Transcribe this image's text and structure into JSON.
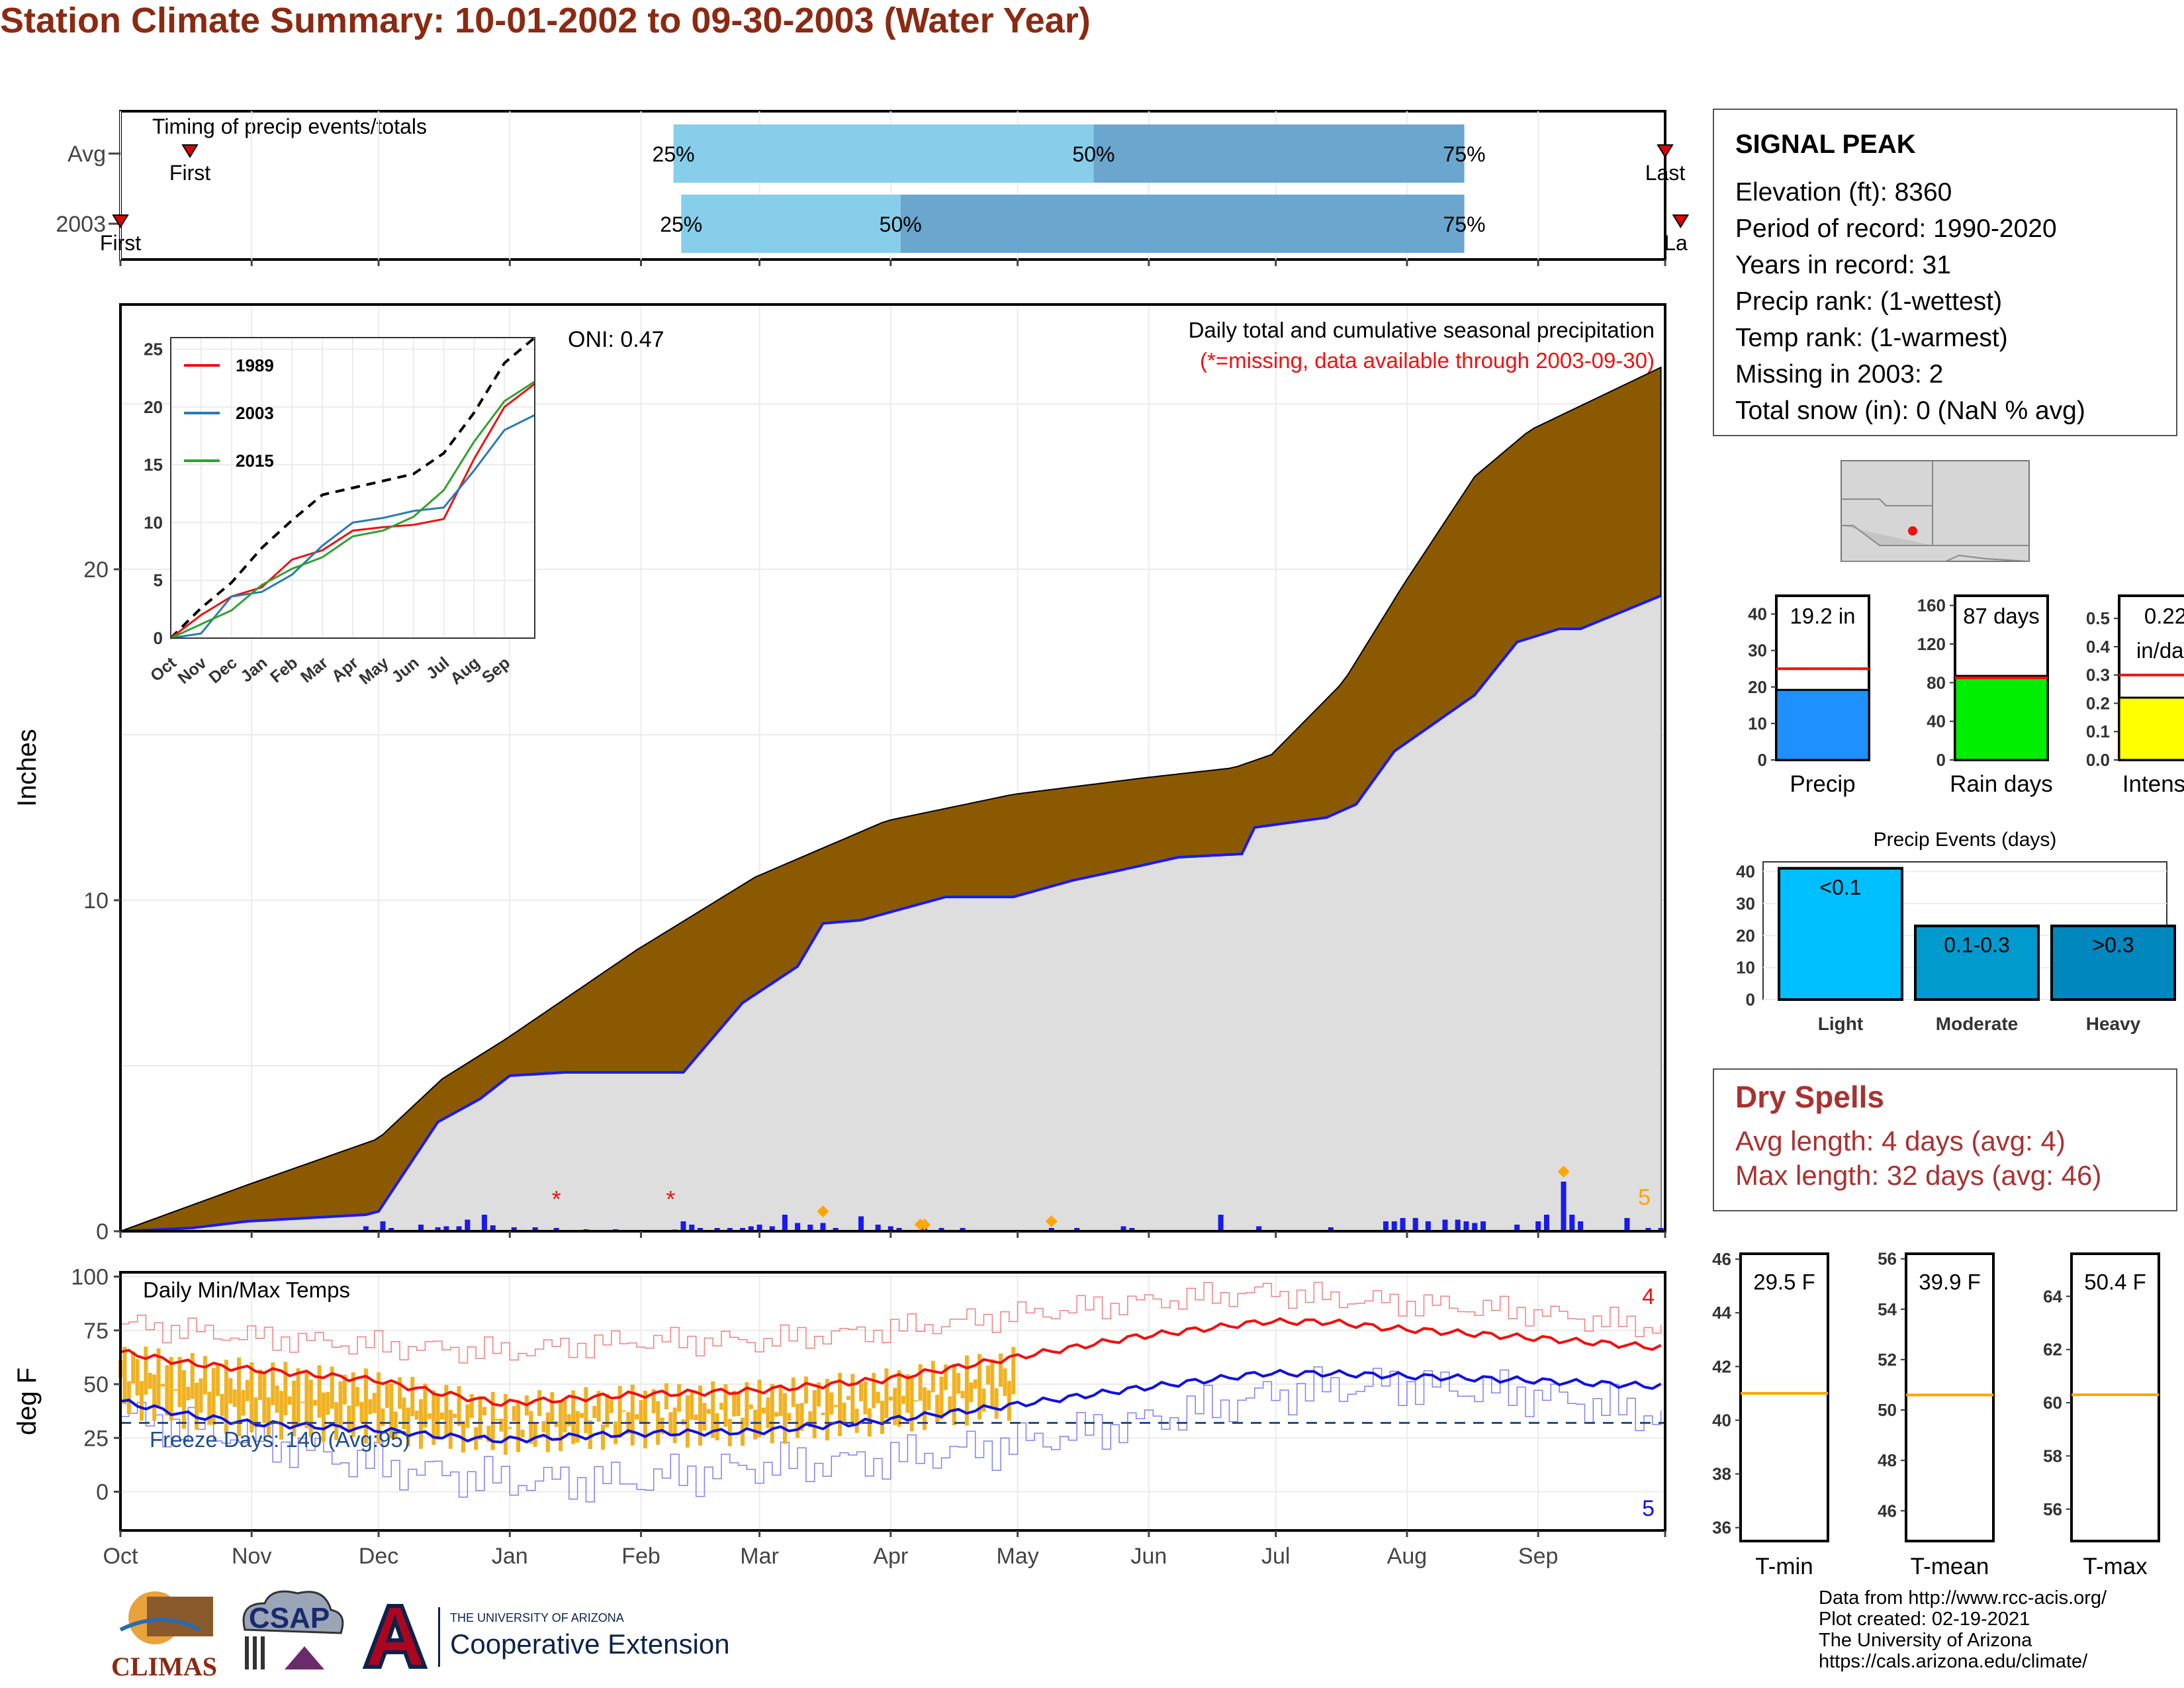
{
  "page": {
    "title": "Station Climate Summary: 10-01-2002 to 09-30-2003 (Water Year)"
  },
  "colors": {
    "title": "#8b2a12",
    "avg_fill": "#8b5a00",
    "year_fill": "#dedede",
    "year_line": "#1a1aee",
    "daily_bars": "#1a1aee",
    "missing": "#ee1111",
    "snow_marker": "#ffa500",
    "timing_light": "#87ceeb",
    "timing_dark": "#6aa6cd",
    "temp_bars": "#f0b222",
    "max_line": "#ee1111",
    "min_line": "#1111dd",
    "precip_bar": "#1e90ff",
    "raindays_bar": "#00ee00",
    "intensity_bar": "#ffff00",
    "events_light": "#00bfff",
    "events_moderate": "#009acd",
    "events_heavy": "#0087bd",
    "avg_ref_line": "#ee1111",
    "temp_avg_line": "#ffa500"
  },
  "timing_panel": {
    "label": "Timing of precip events/totals",
    "rows": [
      {
        "name": "Avg",
        "first_label": "First",
        "last_label": "Last",
        "first_frac": 0.045,
        "last_frac": 1.0,
        "p25": 0.358,
        "p50": 0.63,
        "p75": 0.87,
        "p25_label": "25%",
        "p50_label": "50%",
        "p75_label": "75%"
      },
      {
        "name": "2003",
        "first_label": "First",
        "last_label": "La",
        "first_frac": 0.0,
        "last_frac": 1.01,
        "p25": 0.363,
        "p50": 0.505,
        "p75": 0.87,
        "p25_label": "25%",
        "p50_label": "50%",
        "p75_label": "75%"
      }
    ]
  },
  "station": {
    "name": "SIGNAL PEAK",
    "rows": [
      "Elevation (ft): 8360",
      "Period of record: 1990-2020",
      "Years in record: 31",
      "Precip rank:  (1-wettest)",
      "Temp rank:  (1-warmest)",
      "Missing in 2003: 2",
      "Total snow (in): 0 (NaN % avg)"
    ]
  },
  "main_chart": {
    "ylabel": "Inches",
    "oni": "ONI: 0.47",
    "caption": "Daily total and cumulative seasonal precipitation",
    "missing_note": "(*=missing, data available through 2003-09-30)",
    "snow_count": "5",
    "months": [
      "Oct",
      "Nov",
      "Dec",
      "Jan",
      "Feb",
      "Mar",
      "Apr",
      "May",
      "Jun",
      "Jul",
      "Aug",
      "Sep"
    ]
  },
  "chart_data": [
    {
      "type": "area",
      "title": "Daily total and cumulative seasonal precipitation",
      "ylabel": "Inches",
      "ylim": [
        0,
        28
      ],
      "x_unit": "day of water year",
      "yticks": [
        0,
        10,
        20
      ],
      "series": [
        {
          "name": "",
          "x": [
            0,
            30,
            61,
            76,
            91,
            122,
            150,
            181,
            211,
            242,
            263,
            272,
            289,
            303,
            320,
            333,
            364
          ],
          "values": [
            0,
            1.4,
            2.8,
            4.6,
            5.8,
            8.5,
            10.7,
            12.4,
            13.2,
            13.7,
            14.0,
            14.4,
            16.6,
            19.5,
            22.8,
            24.2,
            26.1
          ]
        },
        {
          "name": "",
          "x": [
            0,
            17,
            30,
            58,
            61,
            75,
            85,
            92,
            105,
            133,
            147,
            160,
            166,
            175,
            195,
            211,
            225,
            236,
            250,
            265,
            268,
            285,
            292,
            301,
            320,
            330,
            340,
            345,
            364
          ],
          "values": [
            0,
            0.1,
            0.3,
            0.5,
            0.6,
            3.3,
            4.0,
            4.7,
            4.8,
            4.8,
            6.9,
            8.0,
            9.3,
            9.4,
            10.1,
            10.1,
            10.6,
            10.9,
            11.3,
            11.4,
            12.2,
            12.5,
            12.9,
            14.5,
            16.2,
            17.8,
            18.2,
            18.2,
            19.2
          ]
        }
      ],
      "daily_bars": [
        {
          "x": 58,
          "v": 0.15
        },
        {
          "x": 62,
          "v": 0.3
        },
        {
          "x": 64,
          "v": 0.1
        },
        {
          "x": 71,
          "v": 0.2
        },
        {
          "x": 75,
          "v": 0.12
        },
        {
          "x": 77,
          "v": 0.15
        },
        {
          "x": 80,
          "v": 0.15
        },
        {
          "x": 82,
          "v": 0.35
        },
        {
          "x": 86,
          "v": 0.5
        },
        {
          "x": 88,
          "v": 0.18
        },
        {
          "x": 93,
          "v": 0.12
        },
        {
          "x": 98,
          "v": 0.12
        },
        {
          "x": 103,
          "v": 0.1
        },
        {
          "x": 110,
          "v": 0.06
        },
        {
          "x": 117,
          "v": 0.06
        },
        {
          "x": 131,
          "v": 0.05
        },
        {
          "x": 133,
          "v": 0.3
        },
        {
          "x": 135,
          "v": 0.2
        },
        {
          "x": 137,
          "v": 0.1
        },
        {
          "x": 141,
          "v": 0.1
        },
        {
          "x": 144,
          "v": 0.1
        },
        {
          "x": 147,
          "v": 0.1
        },
        {
          "x": 149,
          "v": 0.15
        },
        {
          "x": 151,
          "v": 0.2
        },
        {
          "x": 154,
          "v": 0.15
        },
        {
          "x": 157,
          "v": 0.5
        },
        {
          "x": 160,
          "v": 0.25
        },
        {
          "x": 163,
          "v": 0.2
        },
        {
          "x": 166,
          "v": 0.25
        },
        {
          "x": 169,
          "v": 0.1
        },
        {
          "x": 175,
          "v": 0.45
        },
        {
          "x": 179,
          "v": 0.2
        },
        {
          "x": 182,
          "v": 0.15
        },
        {
          "x": 184,
          "v": 0.1
        },
        {
          "x": 190,
          "v": 0.12
        },
        {
          "x": 194,
          "v": 0.1
        },
        {
          "x": 199,
          "v": 0.1
        },
        {
          "x": 220,
          "v": 0.1
        },
        {
          "x": 226,
          "v": 0.1
        },
        {
          "x": 237,
          "v": 0.15
        },
        {
          "x": 239,
          "v": 0.1
        },
        {
          "x": 260,
          "v": 0.5
        },
        {
          "x": 269,
          "v": 0.15
        },
        {
          "x": 286,
          "v": 0.12
        },
        {
          "x": 299,
          "v": 0.3
        },
        {
          "x": 301,
          "v": 0.3
        },
        {
          "x": 303,
          "v": 0.4
        },
        {
          "x": 306,
          "v": 0.4
        },
        {
          "x": 309,
          "v": 0.3
        },
        {
          "x": 313,
          "v": 0.35
        },
        {
          "x": 316,
          "v": 0.35
        },
        {
          "x": 318,
          "v": 0.3
        },
        {
          "x": 320,
          "v": 0.25
        },
        {
          "x": 322,
          "v": 0.3
        },
        {
          "x": 330,
          "v": 0.2
        },
        {
          "x": 335,
          "v": 0.3
        },
        {
          "x": 337,
          "v": 0.5
        },
        {
          "x": 341,
          "v": 1.5
        },
        {
          "x": 343,
          "v": 0.5
        },
        {
          "x": 345,
          "v": 0.3
        },
        {
          "x": 356,
          "v": 0.4
        },
        {
          "x": 361,
          "v": 0.1
        },
        {
          "x": 364,
          "v": 0.1
        }
      ],
      "missing_days": [
        103,
        130
      ],
      "snow_days": [
        {
          "x": 166,
          "v": 0.6
        },
        {
          "x": 189,
          "v": 0.2
        },
        {
          "x": 190,
          "v": 0.2
        },
        {
          "x": 220,
          "v": 0.3
        },
        {
          "x": 341,
          "v": 1.8
        }
      ]
    },
    {
      "type": "line",
      "title": "",
      "legend": [
        "1989",
        "2003",
        "2015"
      ],
      "x_ticks": [
        "Oct",
        "Nov",
        "Dec",
        "Jan",
        "Feb",
        "Mar",
        "Apr",
        "May",
        "Jun",
        "Jul",
        "Aug",
        "Sep"
      ],
      "ylim": [
        0,
        26
      ],
      "yticks": [
        0,
        5,
        10,
        15,
        20,
        25
      ],
      "series": [
        {
          "name": "avg",
          "style": "dashed",
          "values": [
            0,
            2.6,
            4.8,
            7.8,
            10.2,
            12.4,
            13.0,
            13.6,
            14.2,
            16.0,
            19.5,
            23.8,
            26.0
          ]
        },
        {
          "name": "1989",
          "values": [
            0,
            2.0,
            3.6,
            4.4,
            6.8,
            7.6,
            9.3,
            9.6,
            9.8,
            10.3,
            15.5,
            20.0,
            22.0
          ]
        },
        {
          "name": "2003",
          "values": [
            0,
            0.4,
            3.6,
            4.0,
            5.5,
            8.0,
            10.0,
            10.4,
            11.0,
            11.3,
            14.5,
            18.0,
            19.3
          ]
        },
        {
          "name": "2015",
          "values": [
            0,
            1.2,
            2.4,
            4.6,
            6.0,
            7.0,
            8.8,
            9.3,
            10.5,
            12.8,
            17.0,
            20.5,
            22.2
          ]
        }
      ]
    },
    {
      "type": "line",
      "title": "Daily Min/Max Temps",
      "ylabel": "deg F",
      "ylim": [
        -18,
        102
      ],
      "yticks": [
        0,
        25,
        50,
        75,
        100
      ],
      "x_unit": "day of water year",
      "freeze_label": "Freeze Days: 140 (Avg:95)",
      "freeze_line": 32,
      "max_count": "4",
      "min_count": "5",
      "avg_max": {
        "x": [
          0,
          15,
          30,
          60,
          75,
          90,
          120,
          150,
          180,
          210,
          240,
          270,
          285,
          300,
          330,
          364
        ],
        "values": [
          65,
          60,
          57,
          52,
          46,
          41,
          45,
          47,
          52,
          62,
          72,
          79,
          79,
          76,
          72,
          67
        ]
      },
      "avg_min": {
        "x": [
          0,
          15,
          30,
          60,
          75,
          90,
          120,
          150,
          180,
          210,
          240,
          270,
          285,
          300,
          330,
          364
        ],
        "values": [
          42,
          36,
          32,
          29,
          26,
          24,
          27,
          28,
          33,
          40,
          48,
          55,
          55,
          54,
          52,
          49
        ]
      },
      "obs_max_envelope": {
        "x": [
          0,
          30,
          60,
          90,
          120,
          150,
          180,
          210,
          240,
          270,
          285,
          300,
          330,
          364
        ],
        "values": [
          78,
          72,
          68,
          65,
          70,
          70,
          75,
          82,
          88,
          93,
          90,
          88,
          84,
          76
        ]
      },
      "obs_min_envelope": {
        "x": [
          0,
          30,
          60,
          90,
          120,
          150,
          180,
          210,
          240,
          270,
          285,
          300,
          330,
          364
        ],
        "values": [
          35,
          25,
          12,
          5,
          5,
          12,
          15,
          22,
          32,
          45,
          48,
          50,
          46,
          35
        ]
      },
      "daily_obs_range_through_day": 212
    },
    {
      "type": "bar",
      "title": "",
      "categories": [
        "Precip"
      ],
      "values": [
        19.2
      ],
      "value_label": "19.2 in",
      "avg": 25,
      "ylim": [
        0,
        45
      ],
      "yticks": [
        0,
        10,
        20,
        30,
        40
      ]
    },
    {
      "type": "bar",
      "title": "",
      "categories": [
        "Rain days"
      ],
      "values": [
        87
      ],
      "value_label": "87 days",
      "avg": 85,
      "ylim": [
        0,
        170
      ],
      "yticks": [
        0,
        40,
        80,
        120,
        160
      ]
    },
    {
      "type": "bar",
      "title": "",
      "categories": [
        "Intensity"
      ],
      "values": [
        0.22
      ],
      "value_label_1": "0.22",
      "value_label_2": "in/day",
      "avg": 0.3,
      "ylim": [
        0,
        0.58
      ],
      "yticks": [
        "0.0",
        "0.1",
        "0.2",
        "0.3",
        "0.4",
        "0.5"
      ]
    },
    {
      "type": "bar",
      "title": "Precip Events (days)",
      "categories": [
        "Light",
        "Moderate",
        "Heavy"
      ],
      "values": [
        41,
        23,
        23
      ],
      "bar_labels": [
        "<0.1",
        "0.1-0.3",
        ">0.3"
      ],
      "ylim": [
        0,
        43
      ],
      "yticks": [
        0,
        10,
        20,
        30,
        40
      ]
    },
    {
      "type": "bar",
      "title": "",
      "categories": [
        "T-min"
      ],
      "value_label": "29.5 F",
      "avg": 41.0,
      "ylim": [
        35.5,
        46.2
      ],
      "yticks": [
        36,
        38,
        40,
        42,
        44,
        46
      ]
    },
    {
      "type": "bar",
      "title": "",
      "categories": [
        "T-mean"
      ],
      "value_label": "39.9 F",
      "avg": 50.6,
      "ylim": [
        44.8,
        56.2
      ],
      "yticks": [
        46,
        48,
        50,
        52,
        54,
        56
      ]
    },
    {
      "type": "bar",
      "title": "",
      "categories": [
        "T-max"
      ],
      "value_label": "50.4 F",
      "avg": 60.3,
      "ylim": [
        54.8,
        65.6
      ],
      "yticks": [
        56,
        58,
        60,
        62,
        64
      ]
    }
  ],
  "dry_spells": {
    "title": "Dry Spells",
    "avg": "Avg length: 4 days (avg: 4)",
    "max": "Max length: 32 days (avg: 46)"
  },
  "footer": {
    "lines": [
      "Data from http://www.rcc-acis.org/",
      "Plot created: 02-19-2021",
      "The University of Arizona",
      "https://cals.arizona.edu/climate/"
    ]
  },
  "logos": {
    "climas": "CLIMAS",
    "csap": "CSAP",
    "ua_small": "THE UNIVERSITY OF ARIZONA",
    "ua_big": "Cooperative Extension"
  }
}
